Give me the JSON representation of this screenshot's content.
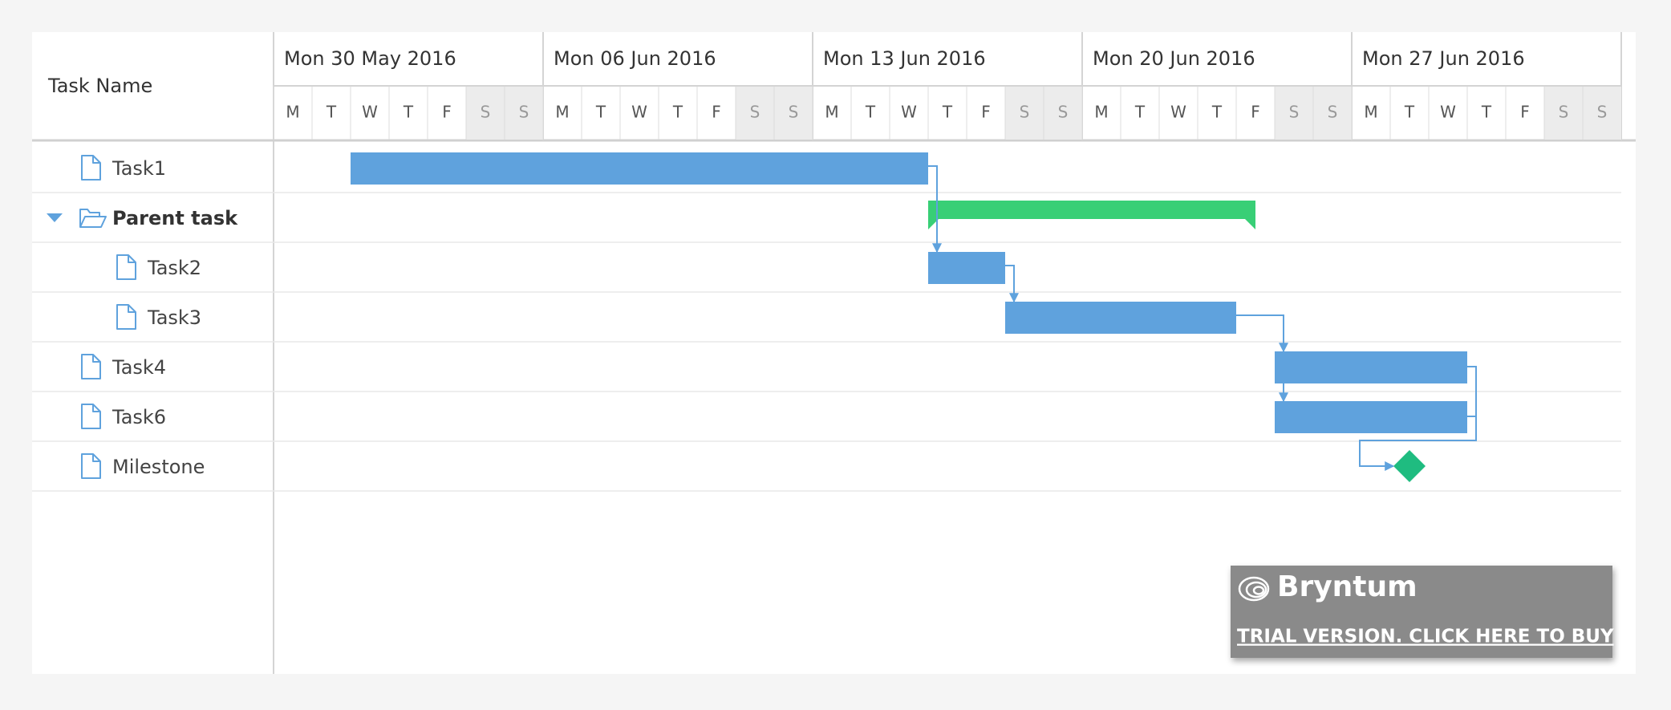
{
  "header": {
    "task_column": "Task Name"
  },
  "timeline": {
    "range": [
      "2016-05-30",
      "2016-07-04"
    ],
    "weeks": [
      "Mon 30 May 2016",
      "Mon 06 Jun 2016",
      "Mon 13 Jun 2016",
      "Mon 20 Jun 2016",
      "Mon 27 Jun 2016"
    ],
    "day_labels": [
      "M",
      "T",
      "W",
      "T",
      "F",
      "S",
      "S"
    ]
  },
  "tasks": [
    {
      "name": "Task1",
      "kind": "task",
      "level": 0,
      "start": "2016-06-01",
      "end": "2016-06-16"
    },
    {
      "name": "Parent task",
      "kind": "summary",
      "level": 0,
      "start": "2016-06-16",
      "end": "2016-06-25"
    },
    {
      "name": "Task2",
      "kind": "task",
      "level": 1,
      "start": "2016-06-16",
      "end": "2016-06-18"
    },
    {
      "name": "Task3",
      "kind": "task",
      "level": 1,
      "start": "2016-06-18",
      "end": "2016-06-24"
    },
    {
      "name": "Task4",
      "kind": "task",
      "level": 0,
      "start": "2016-06-25",
      "end": "2016-06-30"
    },
    {
      "name": "Task6",
      "kind": "task",
      "level": 0,
      "start": "2016-06-25",
      "end": "2016-06-30"
    },
    {
      "name": "Milestone",
      "kind": "milestone",
      "level": 0,
      "start": "2016-06-28"
    }
  ],
  "banner": {
    "brand": "Bryntum",
    "link": "TRIAL VERSION. CLICK HERE TO BUY"
  }
}
